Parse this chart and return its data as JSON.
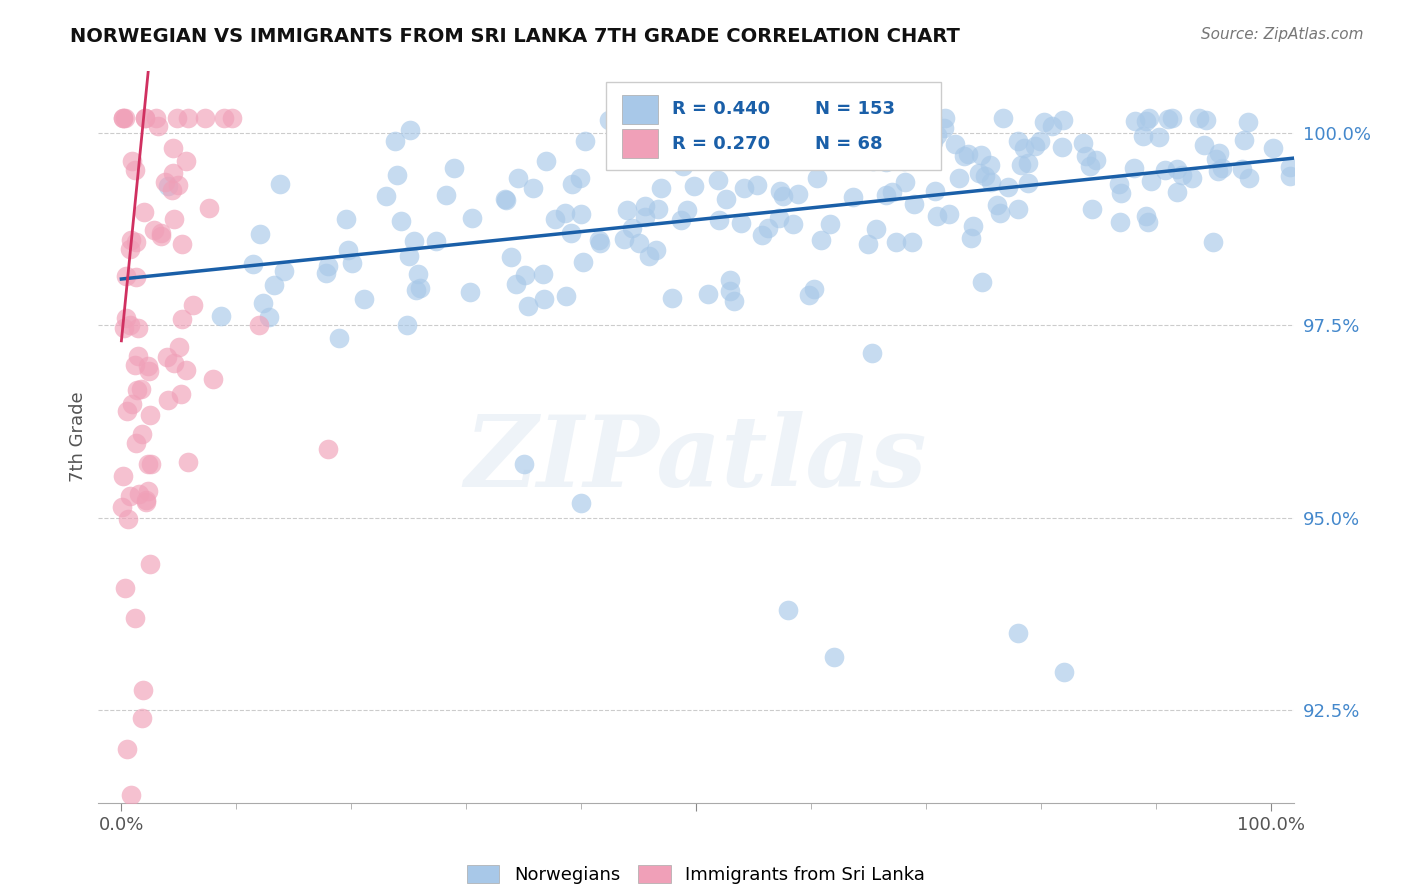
{
  "title": "NORWEGIAN VS IMMIGRANTS FROM SRI LANKA 7TH GRADE CORRELATION CHART",
  "source_text": "Source: ZipAtlas.com",
  "ylabel": "7th Grade",
  "xlim": [
    -0.02,
    1.02
  ],
  "ylim": [
    0.913,
    1.008
  ],
  "yticks": [
    0.925,
    0.95,
    0.975,
    1.0
  ],
  "ytick_labels": [
    "92.5%",
    "95.0%",
    "97.5%",
    "100.0%"
  ],
  "xtick_positions": [
    0.0,
    0.5,
    1.0
  ],
  "xtick_labels": [
    "0.0%",
    "",
    "100.0%"
  ],
  "legend_R_blue": "R = 0.440",
  "legend_N_blue": "N = 153",
  "legend_R_pink": "R = 0.270",
  "legend_N_pink": "N = 68",
  "legend_label_blue": "Norwegians",
  "legend_label_pink": "Immigrants from Sri Lanka",
  "blue_color": "#a8c8e8",
  "pink_color": "#f0a0b8",
  "line_blue_color": "#1a5fa8",
  "line_pink_color": "#d03060",
  "ytick_color": "#4488cc",
  "xtick_color": "#555555",
  "watermark_text": "ZIPatlas",
  "background_color": "#ffffff",
  "seed": 12345,
  "N_blue": 153,
  "N_pink": 68,
  "blue_R": 0.44,
  "pink_R": 0.27
}
